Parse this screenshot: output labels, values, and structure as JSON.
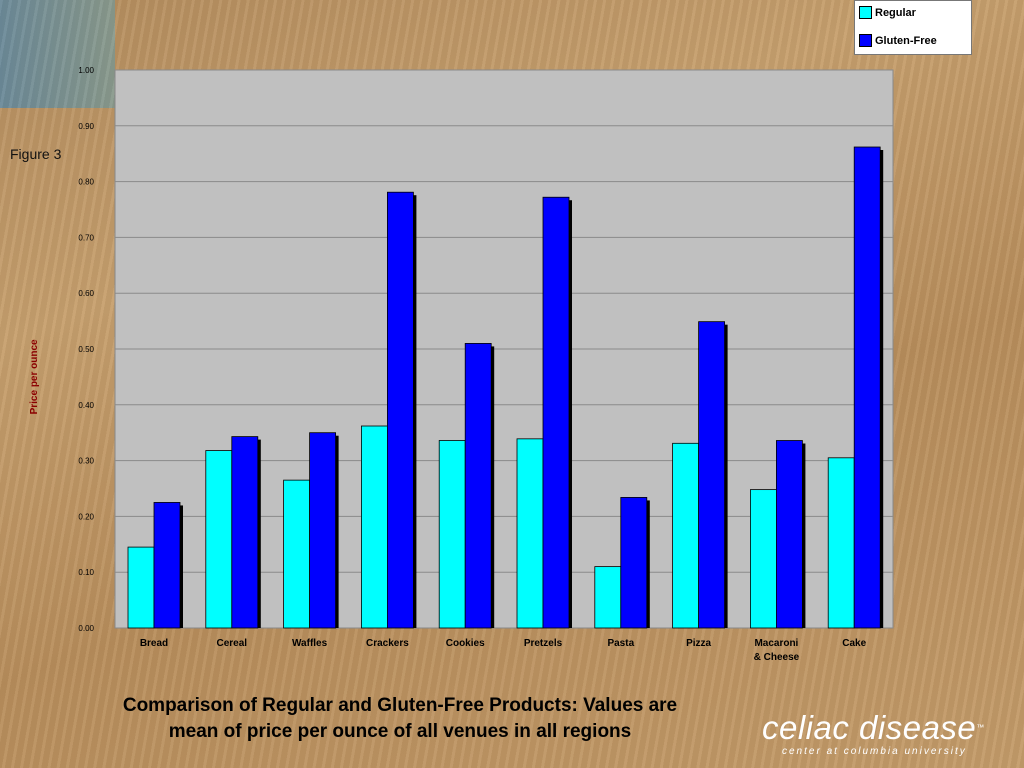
{
  "figure_label": "Figure 3",
  "caption_line1": "Comparison of Regular and Gluten-Free Products: Values are",
  "caption_line2": "mean of price per ounce of all venues in all regions",
  "logo": {
    "main": "celiac disease",
    "trademark": "™",
    "subtitle": "center at columbia university"
  },
  "colors": {
    "regular": "#00ffff",
    "gluten_free": "#0000ff",
    "plot_bg": "#c0c0c0"
  },
  "chart_data": {
    "type": "bar",
    "title": "",
    "xlabel": "",
    "ylabel": "Price per ounce",
    "ylim": [
      0,
      1.0
    ],
    "yticks": [
      "0.00",
      "0.10",
      "0.20",
      "0.30",
      "0.40",
      "0.50",
      "0.60",
      "0.70",
      "0.80",
      "0.90",
      "1.00"
    ],
    "grid": true,
    "legend_position": "top-right",
    "categories": [
      "Bread",
      "Cereal",
      "Waffles",
      "Crackers",
      "Cookies",
      "Pretzels",
      "Pasta",
      "Pizza",
      "Macaroni & Cheese",
      "Cake"
    ],
    "category_lines": [
      [
        "Bread"
      ],
      [
        "Cereal"
      ],
      [
        "Waffles"
      ],
      [
        "Crackers"
      ],
      [
        "Cookies"
      ],
      [
        "Pretzels"
      ],
      [
        "Pasta"
      ],
      [
        "Pizza"
      ],
      [
        "Macaroni",
        "& Cheese"
      ],
      [
        "Cake"
      ]
    ],
    "series": [
      {
        "name": "Regular",
        "values": [
          0.145,
          0.318,
          0.265,
          0.362,
          0.336,
          0.339,
          0.11,
          0.331,
          0.248,
          0.305
        ]
      },
      {
        "name": "Gluten-Free",
        "values": [
          0.225,
          0.343,
          0.35,
          0.781,
          0.51,
          0.772,
          0.234,
          0.549,
          0.336,
          0.862
        ]
      }
    ]
  }
}
